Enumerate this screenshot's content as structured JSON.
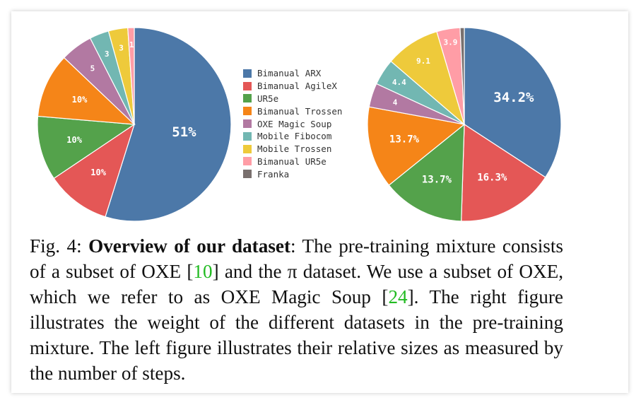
{
  "chart_data": [
    {
      "type": "pie",
      "labels": [
        "Bimanual ARX",
        "Bimanual AgileX",
        "UR5e",
        "Bimanual Trossen",
        "OXE Magic Soup",
        "Mobile Fibocom",
        "Mobile Trossen",
        "Bimanual UR5e",
        "Franka"
      ],
      "values": [
        51,
        10,
        10,
        10,
        5,
        3,
        3,
        1,
        0
      ],
      "value_labels": [
        "51%",
        "10%",
        "10%",
        "10%",
        "5",
        "3",
        "3",
        "1",
        ""
      ],
      "colors": [
        "#4c78a8",
        "#e45756",
        "#54a24b",
        "#f58518",
        "#b279a2",
        "#72b7b2",
        "#eeca3b",
        "#ff9da6",
        "#79706e"
      ]
    },
    {
      "type": "pie",
      "labels": [
        "Bimanual ARX",
        "Bimanual AgileX",
        "UR5e",
        "Bimanual Trossen",
        "OXE Magic Soup",
        "Mobile Fibocom",
        "Mobile Trossen",
        "Bimanual UR5e",
        "Franka"
      ],
      "values": [
        34.2,
        16.3,
        13.7,
        13.7,
        4,
        4.4,
        9.1,
        3.9,
        0.7
      ],
      "value_labels": [
        "34.2%",
        "16.3%",
        "13.7%",
        "13.7%",
        "4",
        "4.4",
        "9.1",
        "3.9",
        ""
      ],
      "colors": [
        "#4c78a8",
        "#e45756",
        "#54a24b",
        "#f58518",
        "#b279a2",
        "#72b7b2",
        "#eeca3b",
        "#ff9da6",
        "#79706e"
      ]
    }
  ],
  "legend": {
    "items": [
      {
        "label": "Bimanual ARX",
        "color": "#4c78a8"
      },
      {
        "label": "Bimanual AgileX",
        "color": "#e45756"
      },
      {
        "label": "UR5e",
        "color": "#54a24b"
      },
      {
        "label": "Bimanual Trossen",
        "color": "#f58518"
      },
      {
        "label": "OXE Magic Soup",
        "color": "#b279a2"
      },
      {
        "label": "Mobile Fibocom",
        "color": "#72b7b2"
      },
      {
        "label": "Mobile Trossen",
        "color": "#eeca3b"
      },
      {
        "label": "Bimanual UR5e",
        "color": "#ff9da6"
      },
      {
        "label": "Franka",
        "color": "#79706e"
      }
    ]
  },
  "caption": {
    "fig": "Fig. 4:",
    "bold": "Overview of our dataset",
    "t1": ": The pre-training mixture consists of a subset of OXE [",
    "c1": "10",
    "t2": "] and the π dataset. We use a subset of OXE, which we refer to as OXE Magic Soup [",
    "c2": "24",
    "t3": "]. The right figure illustrates the weight of the different datasets in the pre-training mixture. The left figure illustrates their relative sizes as measured by the number of steps."
  }
}
